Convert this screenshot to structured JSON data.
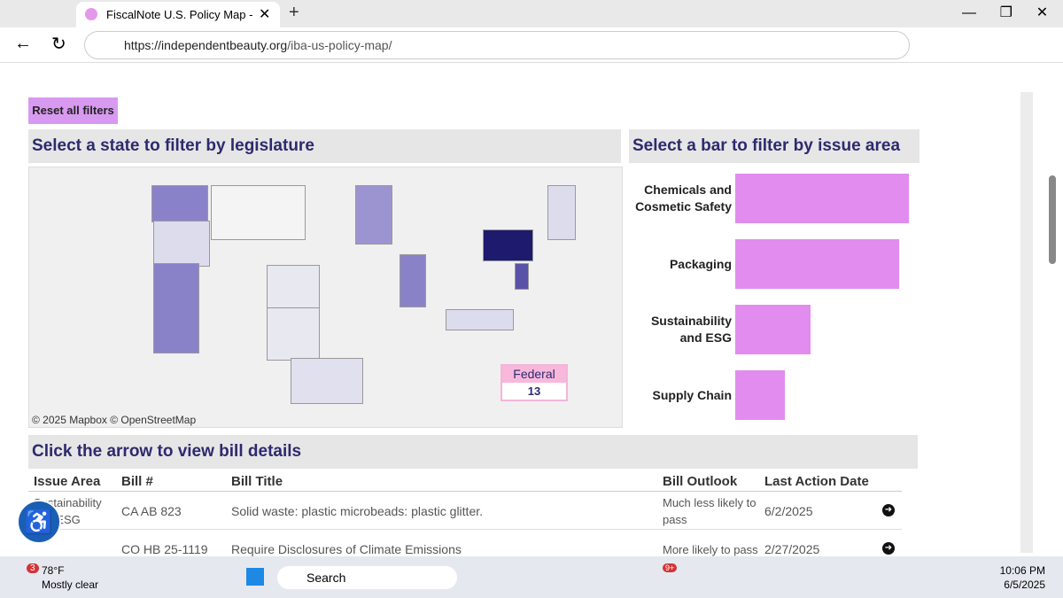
{
  "browser": {
    "tab_title": "FiscalNote U.S. Policy Map - IBA: I",
    "url_host": "https://independentbeauty.org",
    "url_path": "/iba-us-policy-map/"
  },
  "page": {
    "reset_button": "Reset all filters",
    "map_title": "Select a state to filter by legislature",
    "federal_label": "Federal",
    "federal_count": 13,
    "attribution": "© 2025 Mapbox  © OpenStreetMap"
  },
  "chart_data": {
    "type": "bar",
    "title": "Select a bar to filter by issue area",
    "categories": [
      "Chemicals and Cosmetic Safety",
      "Packaging",
      "Sustainability and ESG",
      "Supply Chain"
    ],
    "values": [
      196,
      185,
      85,
      56
    ],
    "color": "#e28cf0",
    "xlim": [
      0,
      200
    ]
  },
  "table": {
    "title": "Click the arrow to view bill details",
    "headers": [
      "Issue Area",
      "Bill #",
      "Bill Title",
      "Bill Outlook",
      "Last Action Date"
    ],
    "rows": [
      [
        "Sustainability and ESG",
        "CA AB 823",
        "Solid waste: plastic microbeads: plastic glitter.",
        "Much less likely to pass",
        "6/2/2025"
      ],
      [
        "",
        "CO HB 25-1119",
        "Require Disclosures of Climate Emissions",
        "More likely to pass",
        "2/27/2025"
      ]
    ]
  },
  "taskbar": {
    "weather_badge": "3",
    "temperature": "78°F",
    "condition": "Mostly clear",
    "search": "Search",
    "teams_badge": "9+",
    "time": "10:06 PM",
    "date": "6/5/2025"
  }
}
